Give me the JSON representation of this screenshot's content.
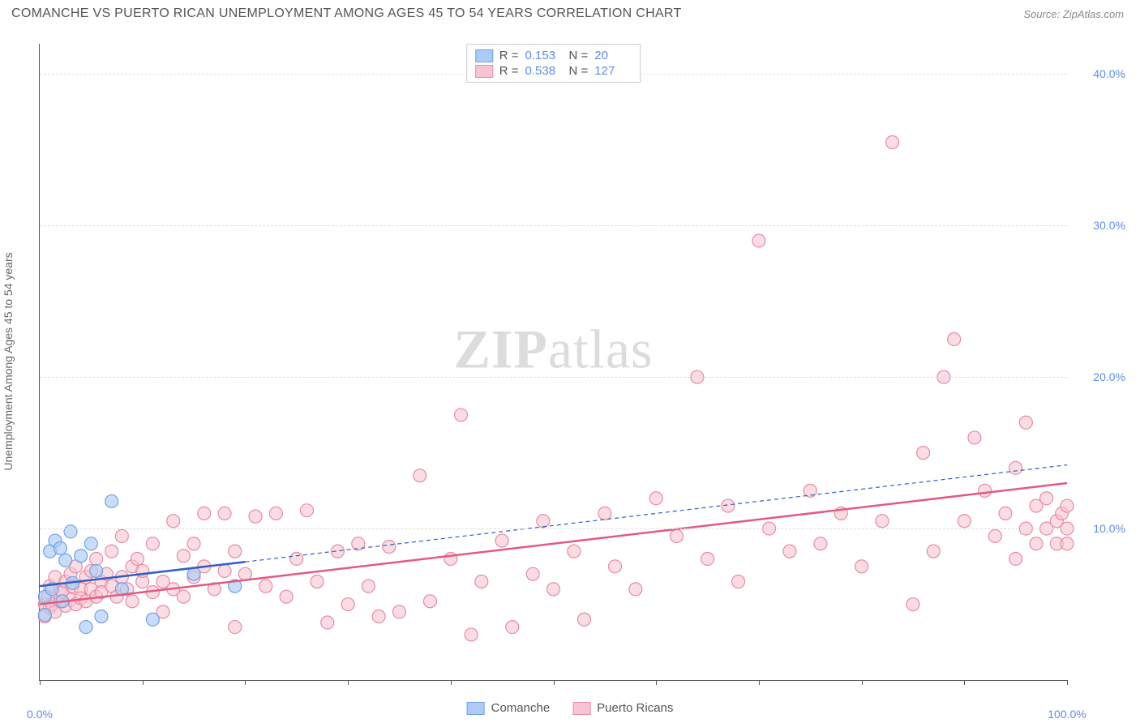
{
  "header": {
    "title": "COMANCHE VS PUERTO RICAN UNEMPLOYMENT AMONG AGES 45 TO 54 YEARS CORRELATION CHART",
    "source": "Source: ZipAtlas.com"
  },
  "watermark": {
    "part1": "ZIP",
    "part2": "atlas"
  },
  "chart": {
    "type": "scatter",
    "y_axis_label": "Unemployment Among Ages 45 to 54 years",
    "xlim": [
      0,
      100
    ],
    "ylim": [
      0,
      42
    ],
    "x_ticks": [
      0,
      10,
      20,
      30,
      40,
      50,
      60,
      70,
      80,
      90,
      100
    ],
    "x_tick_labels_shown": {
      "0": "0.0%",
      "100": "100.0%"
    },
    "y_ticks": [
      10,
      20,
      30,
      40
    ],
    "y_tick_labels": [
      "10.0%",
      "20.0%",
      "30.0%",
      "40.0%"
    ],
    "grid_color": "#dddddd",
    "background_color": "#ffffff",
    "axis_color": "#555555",
    "label_color": "#5b8def",
    "marker_radius": 8,
    "marker_stroke_width": 1.2,
    "series": [
      {
        "name": "Comanche",
        "fill": "#aecbf5",
        "stroke": "#6ea3e8",
        "fill_opacity": 0.65,
        "r": 0.153,
        "n": 20,
        "trendline": {
          "x1": 0,
          "y1": 6.2,
          "x2": 20,
          "y2": 7.8,
          "stroke": "#2e5fc4",
          "width": 2.5,
          "dash": "none"
        },
        "trendline_ext": {
          "x1": 20,
          "y1": 7.8,
          "x2": 100,
          "y2": 14.2,
          "stroke": "#2e5fc4",
          "width": 1.2,
          "dash": "5,4"
        },
        "points": [
          [
            0.5,
            5.5
          ],
          [
            0.5,
            4.3
          ],
          [
            1,
            8.5
          ],
          [
            1.2,
            6.0
          ],
          [
            1.5,
            9.2
          ],
          [
            2,
            8.7
          ],
          [
            2.2,
            5.2
          ],
          [
            2.5,
            7.9
          ],
          [
            3,
            9.8
          ],
          [
            3.2,
            6.4
          ],
          [
            4,
            8.2
          ],
          [
            4.5,
            3.5
          ],
          [
            5,
            9.0
          ],
          [
            5.5,
            7.2
          ],
          [
            6,
            4.2
          ],
          [
            7,
            11.8
          ],
          [
            8,
            6.0
          ],
          [
            11,
            4.0
          ],
          [
            15,
            7.0
          ],
          [
            19,
            6.2
          ]
        ]
      },
      {
        "name": "Puerto Ricans",
        "fill": "#f7c4d1",
        "stroke": "#e88ba5",
        "fill_opacity": 0.6,
        "r": 0.538,
        "n": 127,
        "trendline": {
          "x1": 0,
          "y1": 5.0,
          "x2": 100,
          "y2": 13.0,
          "stroke": "#e35a80",
          "width": 2.5,
          "dash": "none"
        },
        "points": [
          [
            0.5,
            5.0
          ],
          [
            0.5,
            4.2
          ],
          [
            0.8,
            5.5
          ],
          [
            1,
            4.8
          ],
          [
            1,
            6.2
          ],
          [
            1.2,
            5.0
          ],
          [
            1.5,
            6.8
          ],
          [
            1.5,
            4.5
          ],
          [
            2,
            5.2
          ],
          [
            2,
            6.0
          ],
          [
            2.2,
            5.8
          ],
          [
            2.5,
            4.9
          ],
          [
            2.5,
            6.5
          ],
          [
            3,
            5.3
          ],
          [
            3,
            7.0
          ],
          [
            3.2,
            6.2
          ],
          [
            3.5,
            5.0
          ],
          [
            3.5,
            7.5
          ],
          [
            4,
            6.0
          ],
          [
            4,
            5.4
          ],
          [
            4.5,
            6.8
          ],
          [
            4.5,
            5.2
          ],
          [
            5,
            7.2
          ],
          [
            5,
            6.0
          ],
          [
            5.5,
            5.5
          ],
          [
            5.5,
            8.0
          ],
          [
            6,
            6.5
          ],
          [
            6,
            5.8
          ],
          [
            6.5,
            7.0
          ],
          [
            7,
            6.2
          ],
          [
            7,
            8.5
          ],
          [
            7.5,
            5.5
          ],
          [
            8,
            6.8
          ],
          [
            8,
            9.5
          ],
          [
            8.5,
            6.0
          ],
          [
            9,
            7.5
          ],
          [
            9,
            5.2
          ],
          [
            9.5,
            8.0
          ],
          [
            10,
            6.5
          ],
          [
            10,
            7.2
          ],
          [
            11,
            5.8
          ],
          [
            11,
            9.0
          ],
          [
            12,
            6.5
          ],
          [
            12,
            4.5
          ],
          [
            13,
            10.5
          ],
          [
            13,
            6.0
          ],
          [
            14,
            8.2
          ],
          [
            14,
            5.5
          ],
          [
            15,
            9.0
          ],
          [
            15,
            6.8
          ],
          [
            16,
            7.5
          ],
          [
            16,
            11.0
          ],
          [
            17,
            6.0
          ],
          [
            18,
            11.0
          ],
          [
            18,
            7.2
          ],
          [
            19,
            8.5
          ],
          [
            19,
            3.5
          ],
          [
            20,
            7.0
          ],
          [
            21,
            10.8
          ],
          [
            22,
            6.2
          ],
          [
            23,
            11.0
          ],
          [
            24,
            5.5
          ],
          [
            25,
            8.0
          ],
          [
            26,
            11.2
          ],
          [
            27,
            6.5
          ],
          [
            28,
            3.8
          ],
          [
            29,
            8.5
          ],
          [
            30,
            5.0
          ],
          [
            31,
            9.0
          ],
          [
            32,
            6.2
          ],
          [
            33,
            4.2
          ],
          [
            34,
            8.8
          ],
          [
            35,
            4.5
          ],
          [
            37,
            13.5
          ],
          [
            38,
            5.2
          ],
          [
            40,
            8.0
          ],
          [
            41,
            17.5
          ],
          [
            42,
            3.0
          ],
          [
            43,
            6.5
          ],
          [
            45,
            9.2
          ],
          [
            46,
            3.5
          ],
          [
            48,
            7.0
          ],
          [
            49,
            10.5
          ],
          [
            50,
            6.0
          ],
          [
            52,
            8.5
          ],
          [
            53,
            4.0
          ],
          [
            55,
            11.0
          ],
          [
            56,
            7.5
          ],
          [
            58,
            6.0
          ],
          [
            60,
            12.0
          ],
          [
            62,
            9.5
          ],
          [
            64,
            20.0
          ],
          [
            65,
            8.0
          ],
          [
            67,
            11.5
          ],
          [
            68,
            6.5
          ],
          [
            70,
            29.0
          ],
          [
            71,
            10.0
          ],
          [
            73,
            8.5
          ],
          [
            75,
            12.5
          ],
          [
            76,
            9.0
          ],
          [
            78,
            11.0
          ],
          [
            80,
            7.5
          ],
          [
            82,
            10.5
          ],
          [
            83,
            35.5
          ],
          [
            85,
            5.0
          ],
          [
            86,
            15.0
          ],
          [
            87,
            8.5
          ],
          [
            88,
            20.0
          ],
          [
            89,
            22.5
          ],
          [
            90,
            10.5
          ],
          [
            91,
            16.0
          ],
          [
            92,
            12.5
          ],
          [
            93,
            9.5
          ],
          [
            94,
            11.0
          ],
          [
            95,
            8.0
          ],
          [
            95,
            14.0
          ],
          [
            96,
            10.0
          ],
          [
            96,
            17.0
          ],
          [
            97,
            11.5
          ],
          [
            97,
            9.0
          ],
          [
            98,
            10.0
          ],
          [
            98,
            12.0
          ],
          [
            99,
            10.5
          ],
          [
            99,
            9.0
          ],
          [
            99.5,
            11.0
          ],
          [
            100,
            10.0
          ],
          [
            100,
            11.5
          ],
          [
            100,
            9.0
          ]
        ]
      }
    ]
  },
  "legend_bottom": [
    {
      "label": "Comanche",
      "fill": "#aecbf5",
      "stroke": "#6ea3e8"
    },
    {
      "label": "Puerto Ricans",
      "fill": "#f7c4d1",
      "stroke": "#e88ba5"
    }
  ]
}
